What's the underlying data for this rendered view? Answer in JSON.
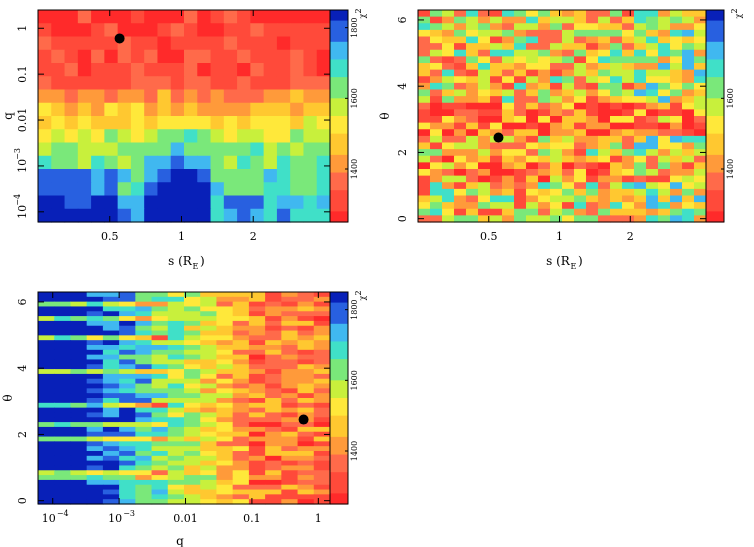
{
  "palette": [
    "#ff2a2a",
    "#ff4a3a",
    "#ff6a4a",
    "#ff9a3a",
    "#ffc830",
    "#ffe83a",
    "#c8f03c",
    "#7ae87a",
    "#40e0c8",
    "#40b8f0",
    "#2860e0",
    "#0820b8"
  ],
  "chart_data": [
    {
      "type": "heatmap",
      "xlabel": "s (R",
      "xlabel_sub": "E",
      "xlabel_close": ")",
      "ylabel": "q",
      "x_scale": "log",
      "y_scale": "log",
      "xlim": [
        0.25,
        4.2
      ],
      "ylim": [
        6e-05,
        2.5
      ],
      "x_ticks": [
        {
          "v": 0.5,
          "label": "0.5"
        },
        {
          "v": 1,
          "label": "1"
        },
        {
          "v": 2,
          "label": "2"
        }
      ],
      "y_ticks": [
        {
          "v": 1,
          "label": "1"
        },
        {
          "v": 0.1,
          "label": "0.1"
        },
        {
          "v": 0.01,
          "label": "0.01"
        },
        {
          "v": 0.001,
          "label": "10",
          "exp": "−3"
        },
        {
          "v": 0.0001,
          "label": "10",
          "exp": "−4"
        }
      ],
      "colorbar": {
        "label": "χ",
        "label_exp": "2",
        "ticks": [
          1400,
          1600,
          1800
        ],
        "range": [
          1250,
          1850
        ]
      },
      "best_fit": {
        "x": 0.55,
        "y": 0.6
      },
      "z_description": "chi-squared map over separation s and mass ratio q",
      "grid_rows": 16,
      "grid_cols": 22
    },
    {
      "type": "heatmap",
      "xlabel": "s (R",
      "xlabel_sub": "E",
      "xlabel_close": ")",
      "ylabel": "θ",
      "x_scale": "log",
      "y_scale": "linear",
      "xlim": [
        0.25,
        4.2
      ],
      "ylim": [
        -0.1,
        6.3
      ],
      "x_ticks": [
        {
          "v": 0.5,
          "label": "0.5"
        },
        {
          "v": 1,
          "label": "1"
        },
        {
          "v": 2,
          "label": "2"
        }
      ],
      "y_ticks": [
        {
          "v": 0,
          "label": "0"
        },
        {
          "v": 2,
          "label": "2"
        },
        {
          "v": 4,
          "label": "4"
        },
        {
          "v": 6,
          "label": "6"
        }
      ],
      "colorbar": {
        "label": "χ",
        "label_exp": "2",
        "ticks": [
          1400,
          1600
        ],
        "range": [
          1250,
          1850
        ]
      },
      "best_fit": {
        "x": 0.55,
        "y": 2.45
      },
      "grid_rows": 32,
      "grid_cols": 24
    },
    {
      "type": "heatmap",
      "xlabel": "q",
      "ylabel": "θ",
      "x_scale": "log",
      "y_scale": "linear",
      "xlim": [
        6e-05,
        1.5
      ],
      "ylim": [
        -0.1,
        6.3
      ],
      "x_ticks": [
        {
          "v": 0.0001,
          "label": "10",
          "exp": "−4"
        },
        {
          "v": 0.001,
          "label": "10",
          "exp": "−3"
        },
        {
          "v": 0.01,
          "label": "0.01"
        },
        {
          "v": 0.1,
          "label": "0.1"
        },
        {
          "v": 1,
          "label": "1"
        }
      ],
      "y_ticks": [
        {
          "v": 0,
          "label": "0"
        },
        {
          "v": 2,
          "label": "2"
        },
        {
          "v": 4,
          "label": "4"
        },
        {
          "v": 6,
          "label": "6"
        }
      ],
      "colorbar": {
        "label": "χ",
        "label_exp": "2",
        "ticks": [
          1400,
          1600,
          1800
        ],
        "range": [
          1250,
          1850
        ]
      },
      "best_fit": {
        "x": 0.6,
        "y": 2.45
      },
      "grid_rows": 44,
      "grid_cols": 18
    }
  ]
}
